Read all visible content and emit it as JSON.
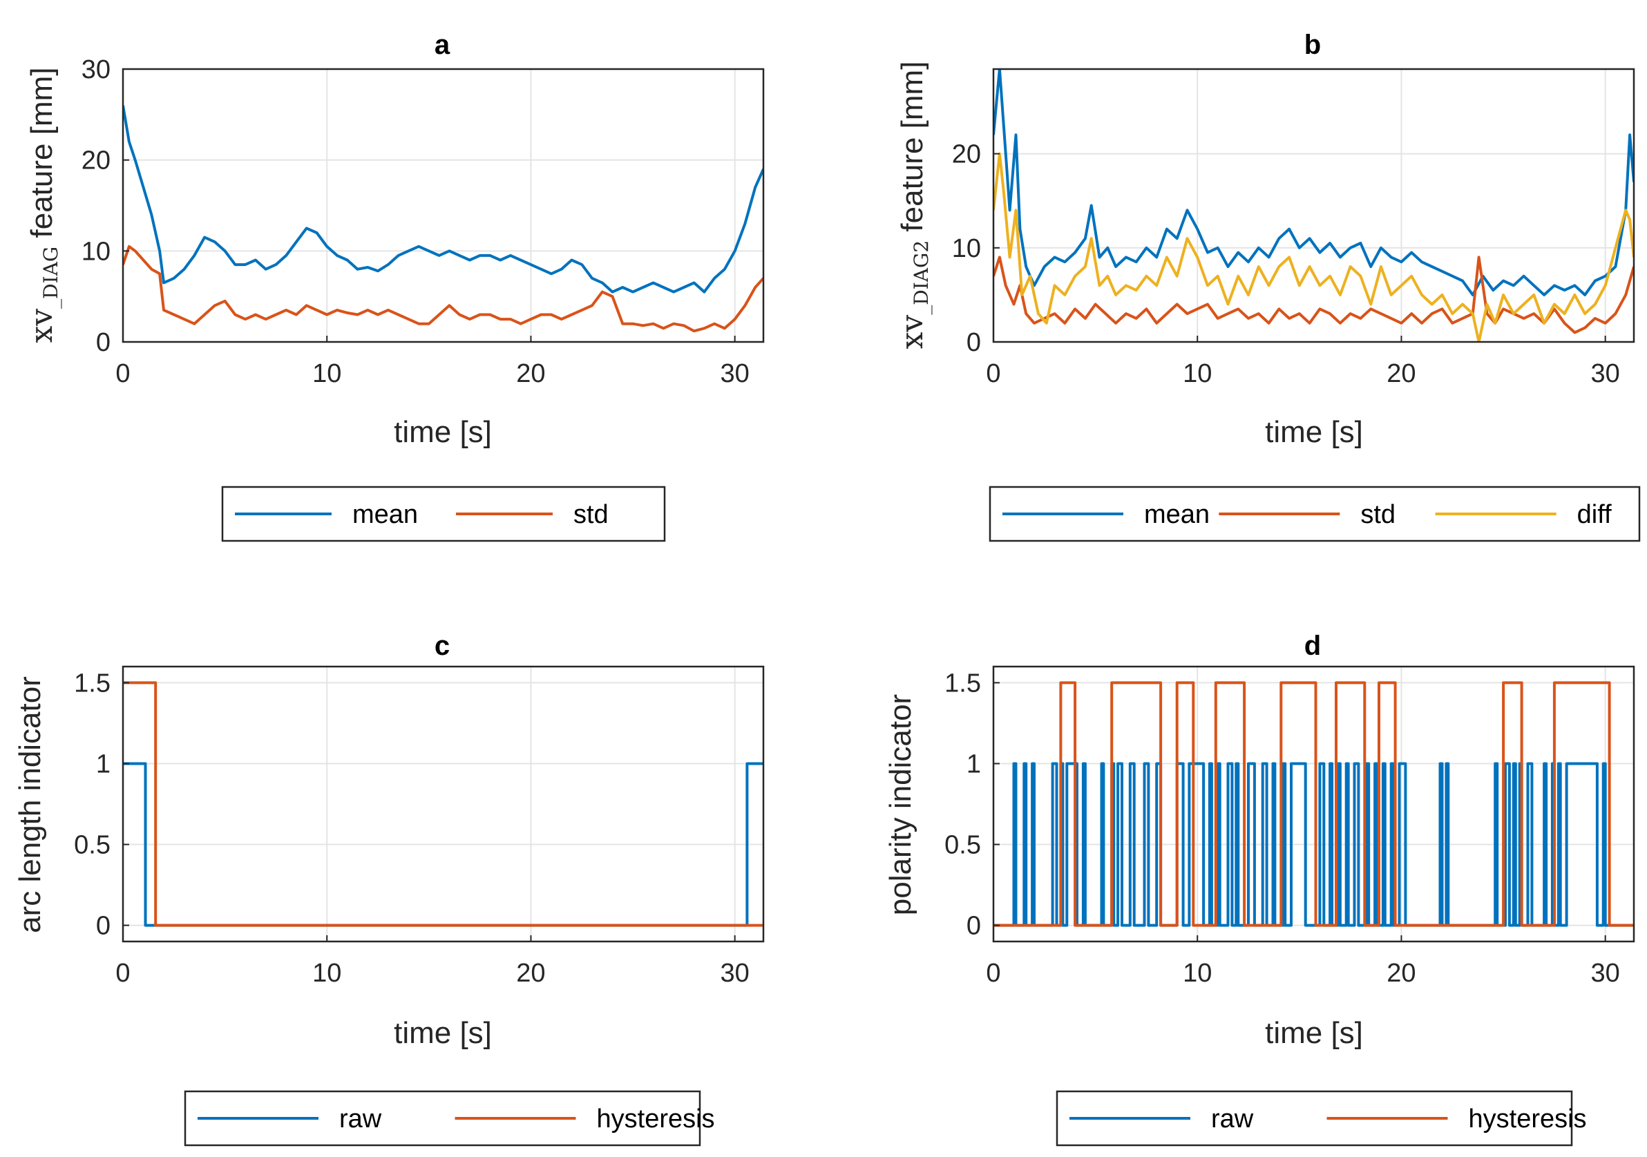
{
  "figure": {
    "panels": [
      "a",
      "b",
      "c",
      "d"
    ]
  },
  "chart_data": [
    {
      "id": "a",
      "type": "line",
      "title": "a",
      "xlabel": "time [s]",
      "ylabel_main": "xv",
      "ylabel_sub": "_DIAG",
      "ylabel_rest": " feature [mm]",
      "xlim": [
        0,
        31.4
      ],
      "ylim": [
        0,
        30
      ],
      "xticks": [
        0,
        10,
        20,
        30
      ],
      "yticks": [
        0,
        10,
        20,
        30
      ],
      "legend": "bottom-outside",
      "series": [
        {
          "name": "mean",
          "color": "#0072BD",
          "x": [
            0,
            0.3,
            0.6,
            1.0,
            1.4,
            1.8,
            2.0,
            2.5,
            3.0,
            3.5,
            4.0,
            4.5,
            5.0,
            5.5,
            6.0,
            6.5,
            7.0,
            7.5,
            8.0,
            8.5,
            9.0,
            9.5,
            10.0,
            10.5,
            11.0,
            11.5,
            12.0,
            12.5,
            13.0,
            13.5,
            14.0,
            14.5,
            15.0,
            15.5,
            16.0,
            16.5,
            17.0,
            17.5,
            18.0,
            18.5,
            19.0,
            19.5,
            20.0,
            20.5,
            21.0,
            21.5,
            22.0,
            22.5,
            23.0,
            23.5,
            24.0,
            24.5,
            25.0,
            25.5,
            26.0,
            26.5,
            27.0,
            27.5,
            28.0,
            28.5,
            29.0,
            29.5,
            30.0,
            30.5,
            31.0,
            31.4
          ],
          "values": [
            26,
            22,
            20,
            17,
            14,
            10,
            6.5,
            7,
            8,
            9.5,
            11.5,
            11,
            10,
            8.5,
            8.5,
            9,
            8,
            8.5,
            9.5,
            11,
            12.5,
            12,
            10.5,
            9.5,
            9,
            8,
            8.2,
            7.8,
            8.5,
            9.5,
            10,
            10.5,
            10,
            9.5,
            10,
            9.5,
            9,
            9.5,
            9.5,
            9,
            9.5,
            9,
            8.5,
            8,
            7.5,
            8,
            9,
            8.5,
            7,
            6.5,
            5.5,
            6,
            5.5,
            6,
            6.5,
            6,
            5.5,
            6,
            6.5,
            5.5,
            7,
            8,
            10,
            13,
            17,
            19
          ]
        },
        {
          "name": "std",
          "color": "#D95319",
          "x": [
            0,
            0.3,
            0.6,
            1.0,
            1.4,
            1.8,
            2.0,
            2.5,
            3.0,
            3.5,
            4.0,
            4.5,
            5.0,
            5.5,
            6.0,
            6.5,
            7.0,
            7.5,
            8.0,
            8.5,
            9.0,
            9.5,
            10.0,
            10.5,
            11.0,
            11.5,
            12.0,
            12.5,
            13.0,
            13.5,
            14.0,
            14.5,
            15.0,
            15.5,
            16.0,
            16.5,
            17.0,
            17.5,
            18.0,
            18.5,
            19.0,
            19.5,
            20.0,
            20.5,
            21.0,
            21.5,
            22.0,
            22.5,
            23.0,
            23.5,
            24.0,
            24.5,
            25.0,
            25.5,
            26.0,
            26.5,
            27.0,
            27.5,
            28.0,
            28.5,
            29.0,
            29.5,
            30.0,
            30.5,
            31.0,
            31.4
          ],
          "values": [
            8.5,
            10.5,
            10,
            9,
            8,
            7.5,
            3.5,
            3,
            2.5,
            2,
            3,
            4,
            4.5,
            3,
            2.5,
            3,
            2.5,
            3,
            3.5,
            3,
            4,
            3.5,
            3,
            3.5,
            3.2,
            3,
            3.5,
            3,
            3.5,
            3,
            2.5,
            2,
            2,
            3,
            4,
            3,
            2.5,
            3,
            3,
            2.5,
            2.5,
            2,
            2.5,
            3,
            3,
            2.5,
            3,
            3.5,
            4,
            5.5,
            5,
            2,
            2,
            1.8,
            2,
            1.5,
            2,
            1.8,
            1.2,
            1.5,
            2,
            1.5,
            2.5,
            4,
            6,
            7
          ]
        }
      ]
    },
    {
      "id": "b",
      "type": "line",
      "title": "b",
      "xlabel": "time [s]",
      "ylabel_main": "xv",
      "ylabel_sub": "_DIAG2",
      "ylabel_rest": " feature [mm]",
      "xlim": [
        0,
        31.4
      ],
      "ylim": [
        0,
        29
      ],
      "xticks": [
        0,
        10,
        20,
        30
      ],
      "yticks": [
        0,
        10,
        20
      ],
      "legend": "bottom-outside",
      "series": [
        {
          "name": "mean",
          "color": "#0072BD",
          "x": [
            0,
            0.3,
            0.5,
            0.8,
            1.1,
            1.3,
            1.6,
            2.0,
            2.5,
            3.0,
            3.5,
            4.0,
            4.5,
            4.8,
            5.2,
            5.6,
            6.0,
            6.5,
            7.0,
            7.5,
            8.0,
            8.5,
            9.0,
            9.5,
            10.0,
            10.5,
            11.0,
            11.5,
            12.0,
            12.5,
            13.0,
            13.5,
            14.0,
            14.5,
            15.0,
            15.5,
            16.0,
            16.5,
            17.0,
            17.5,
            18.0,
            18.5,
            19.0,
            19.5,
            20.0,
            20.5,
            21.0,
            21.5,
            22.0,
            22.5,
            23.0,
            23.5,
            24.0,
            24.5,
            25.0,
            25.5,
            26.0,
            26.5,
            27.0,
            27.5,
            28.0,
            28.5,
            29.0,
            29.5,
            30.0,
            30.5,
            31.0,
            31.2,
            31.4
          ],
          "values": [
            22,
            29,
            23,
            14,
            22,
            12,
            8,
            6,
            8,
            9,
            8.5,
            9.5,
            11,
            14.5,
            9,
            10,
            8,
            9,
            8.5,
            10,
            9,
            12,
            11,
            14,
            12,
            9.5,
            10,
            8,
            9.5,
            8.5,
            10,
            9,
            11,
            12,
            10,
            11,
            9.5,
            10.5,
            9,
            10,
            10.5,
            8,
            10,
            9,
            8.5,
            9.5,
            8.5,
            8,
            7.5,
            7,
            6.5,
            5,
            7,
            5.5,
            6.5,
            6,
            7,
            6,
            5,
            6,
            5.5,
            6,
            5,
            6.5,
            7,
            8,
            14,
            22,
            17
          ]
        },
        {
          "name": "std",
          "color": "#D95319",
          "x": [
            0,
            0.3,
            0.6,
            1.0,
            1.3,
            1.6,
            2.0,
            2.5,
            3.0,
            3.5,
            4.0,
            4.5,
            5.0,
            5.5,
            6.0,
            6.5,
            7.0,
            7.5,
            8.0,
            8.5,
            9.0,
            9.5,
            10.0,
            10.5,
            11.0,
            11.5,
            12.0,
            12.5,
            13.0,
            13.5,
            14.0,
            14.5,
            15.0,
            15.5,
            16.0,
            16.5,
            17.0,
            17.5,
            18.0,
            18.5,
            19.0,
            19.5,
            20.0,
            20.5,
            21.0,
            21.5,
            22.0,
            22.5,
            23.0,
            23.5,
            23.8,
            24.2,
            24.6,
            25.0,
            25.5,
            26.0,
            26.5,
            27.0,
            27.5,
            28.0,
            28.5,
            29.0,
            29.5,
            30.0,
            30.5,
            31.0,
            31.4
          ],
          "values": [
            7,
            9,
            6,
            4,
            6,
            3,
            2,
            2.5,
            3,
            2,
            3.5,
            2.5,
            4,
            3,
            2,
            3,
            2.5,
            3.5,
            2,
            3,
            4,
            3,
            3.5,
            4,
            2.5,
            3,
            3.5,
            2.5,
            3,
            2,
            3.5,
            2.5,
            3,
            2,
            3.5,
            3,
            2,
            3,
            2.5,
            3.5,
            3,
            2.5,
            2,
            3,
            2,
            3,
            3.5,
            2,
            2.5,
            3,
            9,
            3,
            2,
            3.5,
            3,
            2.5,
            3,
            2,
            3.5,
            2,
            1,
            1.5,
            2.5,
            2,
            3,
            5,
            8
          ]
        },
        {
          "name": "diff",
          "color": "#EDB120",
          "x": [
            0,
            0.3,
            0.5,
            0.8,
            1.1,
            1.4,
            1.8,
            2.2,
            2.6,
            3.0,
            3.5,
            4.0,
            4.5,
            4.8,
            5.2,
            5.6,
            6.0,
            6.5,
            7.0,
            7.5,
            8.0,
            8.5,
            9.0,
            9.5,
            10.0,
            10.5,
            11.0,
            11.5,
            12.0,
            12.5,
            13.0,
            13.5,
            14.0,
            14.5,
            15.0,
            15.5,
            16.0,
            16.5,
            17.0,
            17.5,
            18.0,
            18.5,
            19.0,
            19.5,
            20.0,
            20.5,
            21.0,
            21.5,
            22.0,
            22.5,
            23.0,
            23.5,
            23.8,
            24.2,
            24.6,
            25.0,
            25.5,
            26.0,
            26.5,
            27.0,
            27.5,
            28.0,
            28.5,
            29.0,
            29.5,
            30.0,
            30.5,
            31.0,
            31.2,
            31.4
          ],
          "values": [
            14,
            20,
            16,
            9,
            14,
            5,
            7,
            3,
            2,
            6,
            5,
            7,
            8,
            11,
            6,
            7,
            5,
            6,
            5.5,
            7,
            6,
            9,
            7,
            11,
            9,
            6,
            7,
            4,
            7,
            5,
            8,
            6,
            8,
            9,
            6,
            8,
            6,
            7,
            5,
            8,
            7,
            4,
            8,
            5,
            6,
            7,
            5,
            4,
            5,
            3,
            4,
            3,
            0,
            4,
            2,
            5,
            3,
            4,
            5,
            2,
            4,
            3,
            5,
            3,
            4,
            6,
            10,
            14,
            13,
            9
          ]
        }
      ]
    },
    {
      "id": "c",
      "type": "line",
      "title": "c",
      "xlabel": "time [s]",
      "ylabel": "arc length indicator",
      "xlim": [
        0,
        31.4
      ],
      "ylim": [
        -0.1,
        1.6
      ],
      "xticks": [
        0,
        10,
        20,
        30
      ],
      "yticks": [
        0,
        0.5,
        1,
        1.5
      ],
      "yticklabels": [
        "0",
        "0.5",
        "1",
        "1.5"
      ],
      "legend": "bottom-outside",
      "series": [
        {
          "name": "raw",
          "color": "#0072BD",
          "x": [
            0,
            1.1,
            1.1,
            30.6,
            30.6,
            31.4
          ],
          "values": [
            1,
            1,
            0,
            0,
            1,
            1
          ]
        },
        {
          "name": "hysteresis",
          "color": "#D95319",
          "x": [
            0,
            1.6,
            1.6,
            31.4
          ],
          "values": [
            1.5,
            1.5,
            0,
            0
          ]
        }
      ]
    },
    {
      "id": "d",
      "type": "line",
      "title": "d",
      "xlabel": "time [s]",
      "ylabel": "polarity indicator",
      "xlim": [
        0,
        31.4
      ],
      "ylim": [
        -0.1,
        1.6
      ],
      "xticks": [
        0,
        10,
        20,
        30
      ],
      "yticks": [
        0,
        0.5,
        1,
        1.5
      ],
      "yticklabels": [
        "0",
        "0.5",
        "1",
        "1.5"
      ],
      "legend": "bottom-outside",
      "series": [
        {
          "name": "raw",
          "color": "#0072BD",
          "pulses": [
            [
              1.0,
              1.1
            ],
            [
              1.5,
              1.6
            ],
            [
              1.9,
              2.0
            ],
            [
              2.9,
              3.1
            ],
            [
              3.3,
              3.4
            ],
            [
              3.6,
              4.1
            ],
            [
              4.4,
              4.5
            ],
            [
              5.3,
              5.4
            ],
            [
              5.8,
              5.9
            ],
            [
              6.1,
              6.3
            ],
            [
              6.7,
              6.9
            ],
            [
              7.4,
              7.6
            ],
            [
              8.0,
              8.2
            ],
            [
              9.0,
              9.3
            ],
            [
              9.6,
              10.3
            ],
            [
              10.6,
              10.7
            ],
            [
              11.0,
              11.1
            ],
            [
              11.5,
              11.7
            ],
            [
              11.9,
              12.0
            ],
            [
              12.5,
              12.8
            ],
            [
              13.2,
              13.4
            ],
            [
              13.7,
              13.8
            ],
            [
              14.2,
              14.3
            ],
            [
              14.6,
              15.3
            ],
            [
              16.0,
              16.2
            ],
            [
              16.5,
              16.6
            ],
            [
              16.9,
              17.0
            ],
            [
              17.3,
              17.4
            ],
            [
              17.7,
              17.9
            ],
            [
              18.3,
              18.4
            ],
            [
              18.7,
              18.8
            ],
            [
              19.1,
              19.2
            ],
            [
              19.5,
              19.6
            ],
            [
              19.9,
              20.2
            ],
            [
              21.9,
              22.0
            ],
            [
              22.2,
              22.3
            ],
            [
              24.6,
              24.7
            ],
            [
              25.1,
              25.3
            ],
            [
              25.5,
              25.6
            ],
            [
              25.8,
              25.9
            ],
            [
              26.2,
              26.4
            ],
            [
              27.0,
              27.1
            ],
            [
              27.4,
              27.5
            ],
            [
              27.7,
              27.8
            ],
            [
              28.1,
              29.6
            ],
            [
              29.9,
              30.0
            ]
          ],
          "high": 1,
          "low": 0
        },
        {
          "name": "hysteresis",
          "color": "#D95319",
          "pulses": [
            [
              3.3,
              4.0
            ],
            [
              5.8,
              8.2
            ],
            [
              9.0,
              9.8
            ],
            [
              10.9,
              12.3
            ],
            [
              14.1,
              15.8
            ],
            [
              16.8,
              18.2
            ],
            [
              18.9,
              19.7
            ],
            [
              25.0,
              25.9
            ],
            [
              27.5,
              30.2
            ]
          ],
          "high": 1.5,
          "low": 0
        }
      ]
    }
  ]
}
